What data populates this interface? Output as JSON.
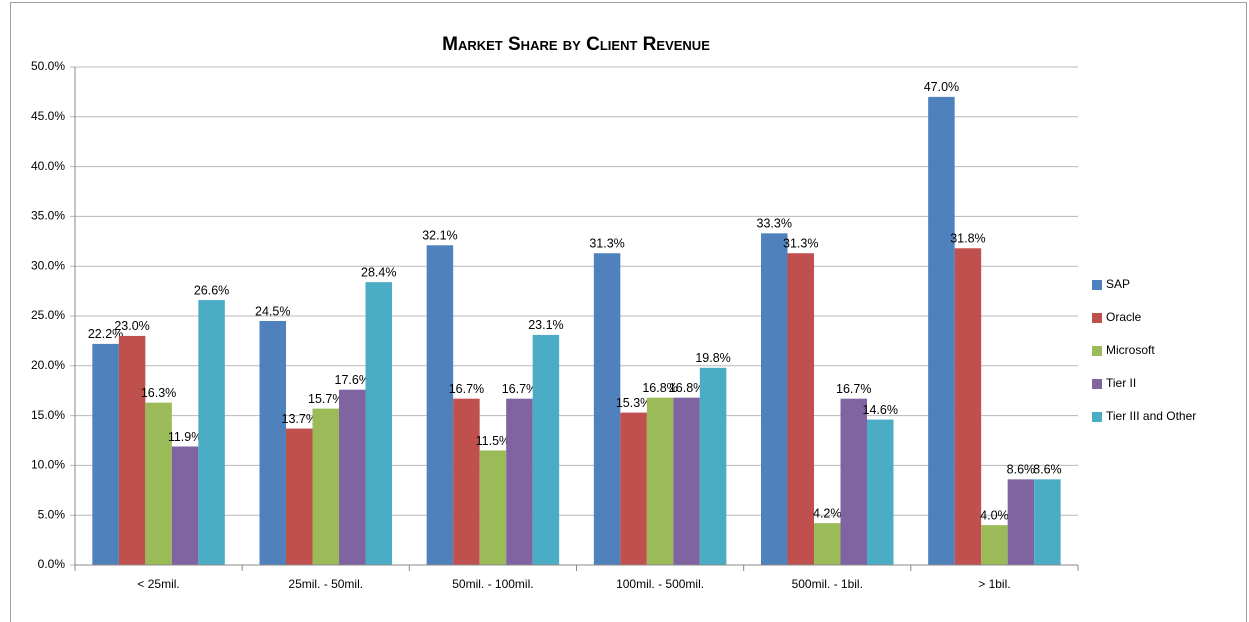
{
  "chart_data": {
    "type": "bar",
    "title": "Market Share by Client Revenue",
    "categories": [
      "< 25mil.",
      "25mil. - 50mil.",
      "50mil. - 100mil.",
      "100mil. - 500mil.",
      "500mil. - 1bil.",
      "> 1bil."
    ],
    "series": [
      {
        "name": "SAP",
        "color": "#4f81bd",
        "values": [
          22.2,
          24.5,
          32.1,
          31.3,
          33.3,
          47.0
        ],
        "value_labels": [
          "22.2%",
          "24.5%",
          "32.1%",
          "31.3%",
          "33.3%",
          "47.0%"
        ]
      },
      {
        "name": "Oracle",
        "color": "#c0504d",
        "values": [
          23.0,
          13.7,
          16.7,
          15.3,
          31.3,
          31.8
        ],
        "value_labels": [
          "23.0%",
          "13.7%",
          "16.7%",
          "15.3%",
          "31.3%",
          "31.8%"
        ]
      },
      {
        "name": "Microsoft",
        "color": "#9bbb59",
        "values": [
          16.3,
          15.7,
          11.5,
          16.8,
          4.2,
          4.0
        ],
        "value_labels": [
          "16.3%",
          "15.7%",
          "11.5%",
          "16.8%",
          "4.2%",
          "4.0%"
        ]
      },
      {
        "name": "Tier II",
        "color": "#8064a2",
        "values": [
          11.9,
          17.6,
          16.7,
          16.8,
          16.7,
          8.6
        ],
        "value_labels": [
          "11.9%",
          "17.6%",
          "16.7%",
          "16.8%",
          "16.7%",
          "8.6%"
        ]
      },
      {
        "name": "Tier III and Other",
        "color": "#4bacc6",
        "values": [
          26.6,
          28.4,
          23.1,
          19.8,
          14.6,
          8.6
        ],
        "value_labels": [
          "26.6%",
          "28.4%",
          "23.1%",
          "19.8%",
          "14.6%",
          "8.6%"
        ]
      }
    ],
    "ylim": [
      0,
      50
    ],
    "yticks": [
      {
        "value": 0,
        "label": "0.0%"
      },
      {
        "value": 5,
        "label": "5.0%"
      },
      {
        "value": 10,
        "label": "10.0%"
      },
      {
        "value": 15,
        "label": "15.0%"
      },
      {
        "value": 20,
        "label": "20.0%"
      },
      {
        "value": 25,
        "label": "25.0%"
      },
      {
        "value": 30,
        "label": "30.0%"
      },
      {
        "value": 35,
        "label": "35.0%"
      },
      {
        "value": 40,
        "label": "40.0%"
      },
      {
        "value": 45,
        "label": "45.0%"
      },
      {
        "value": 50,
        "label": "50.0%"
      }
    ],
    "grid": true,
    "legend": "right"
  }
}
